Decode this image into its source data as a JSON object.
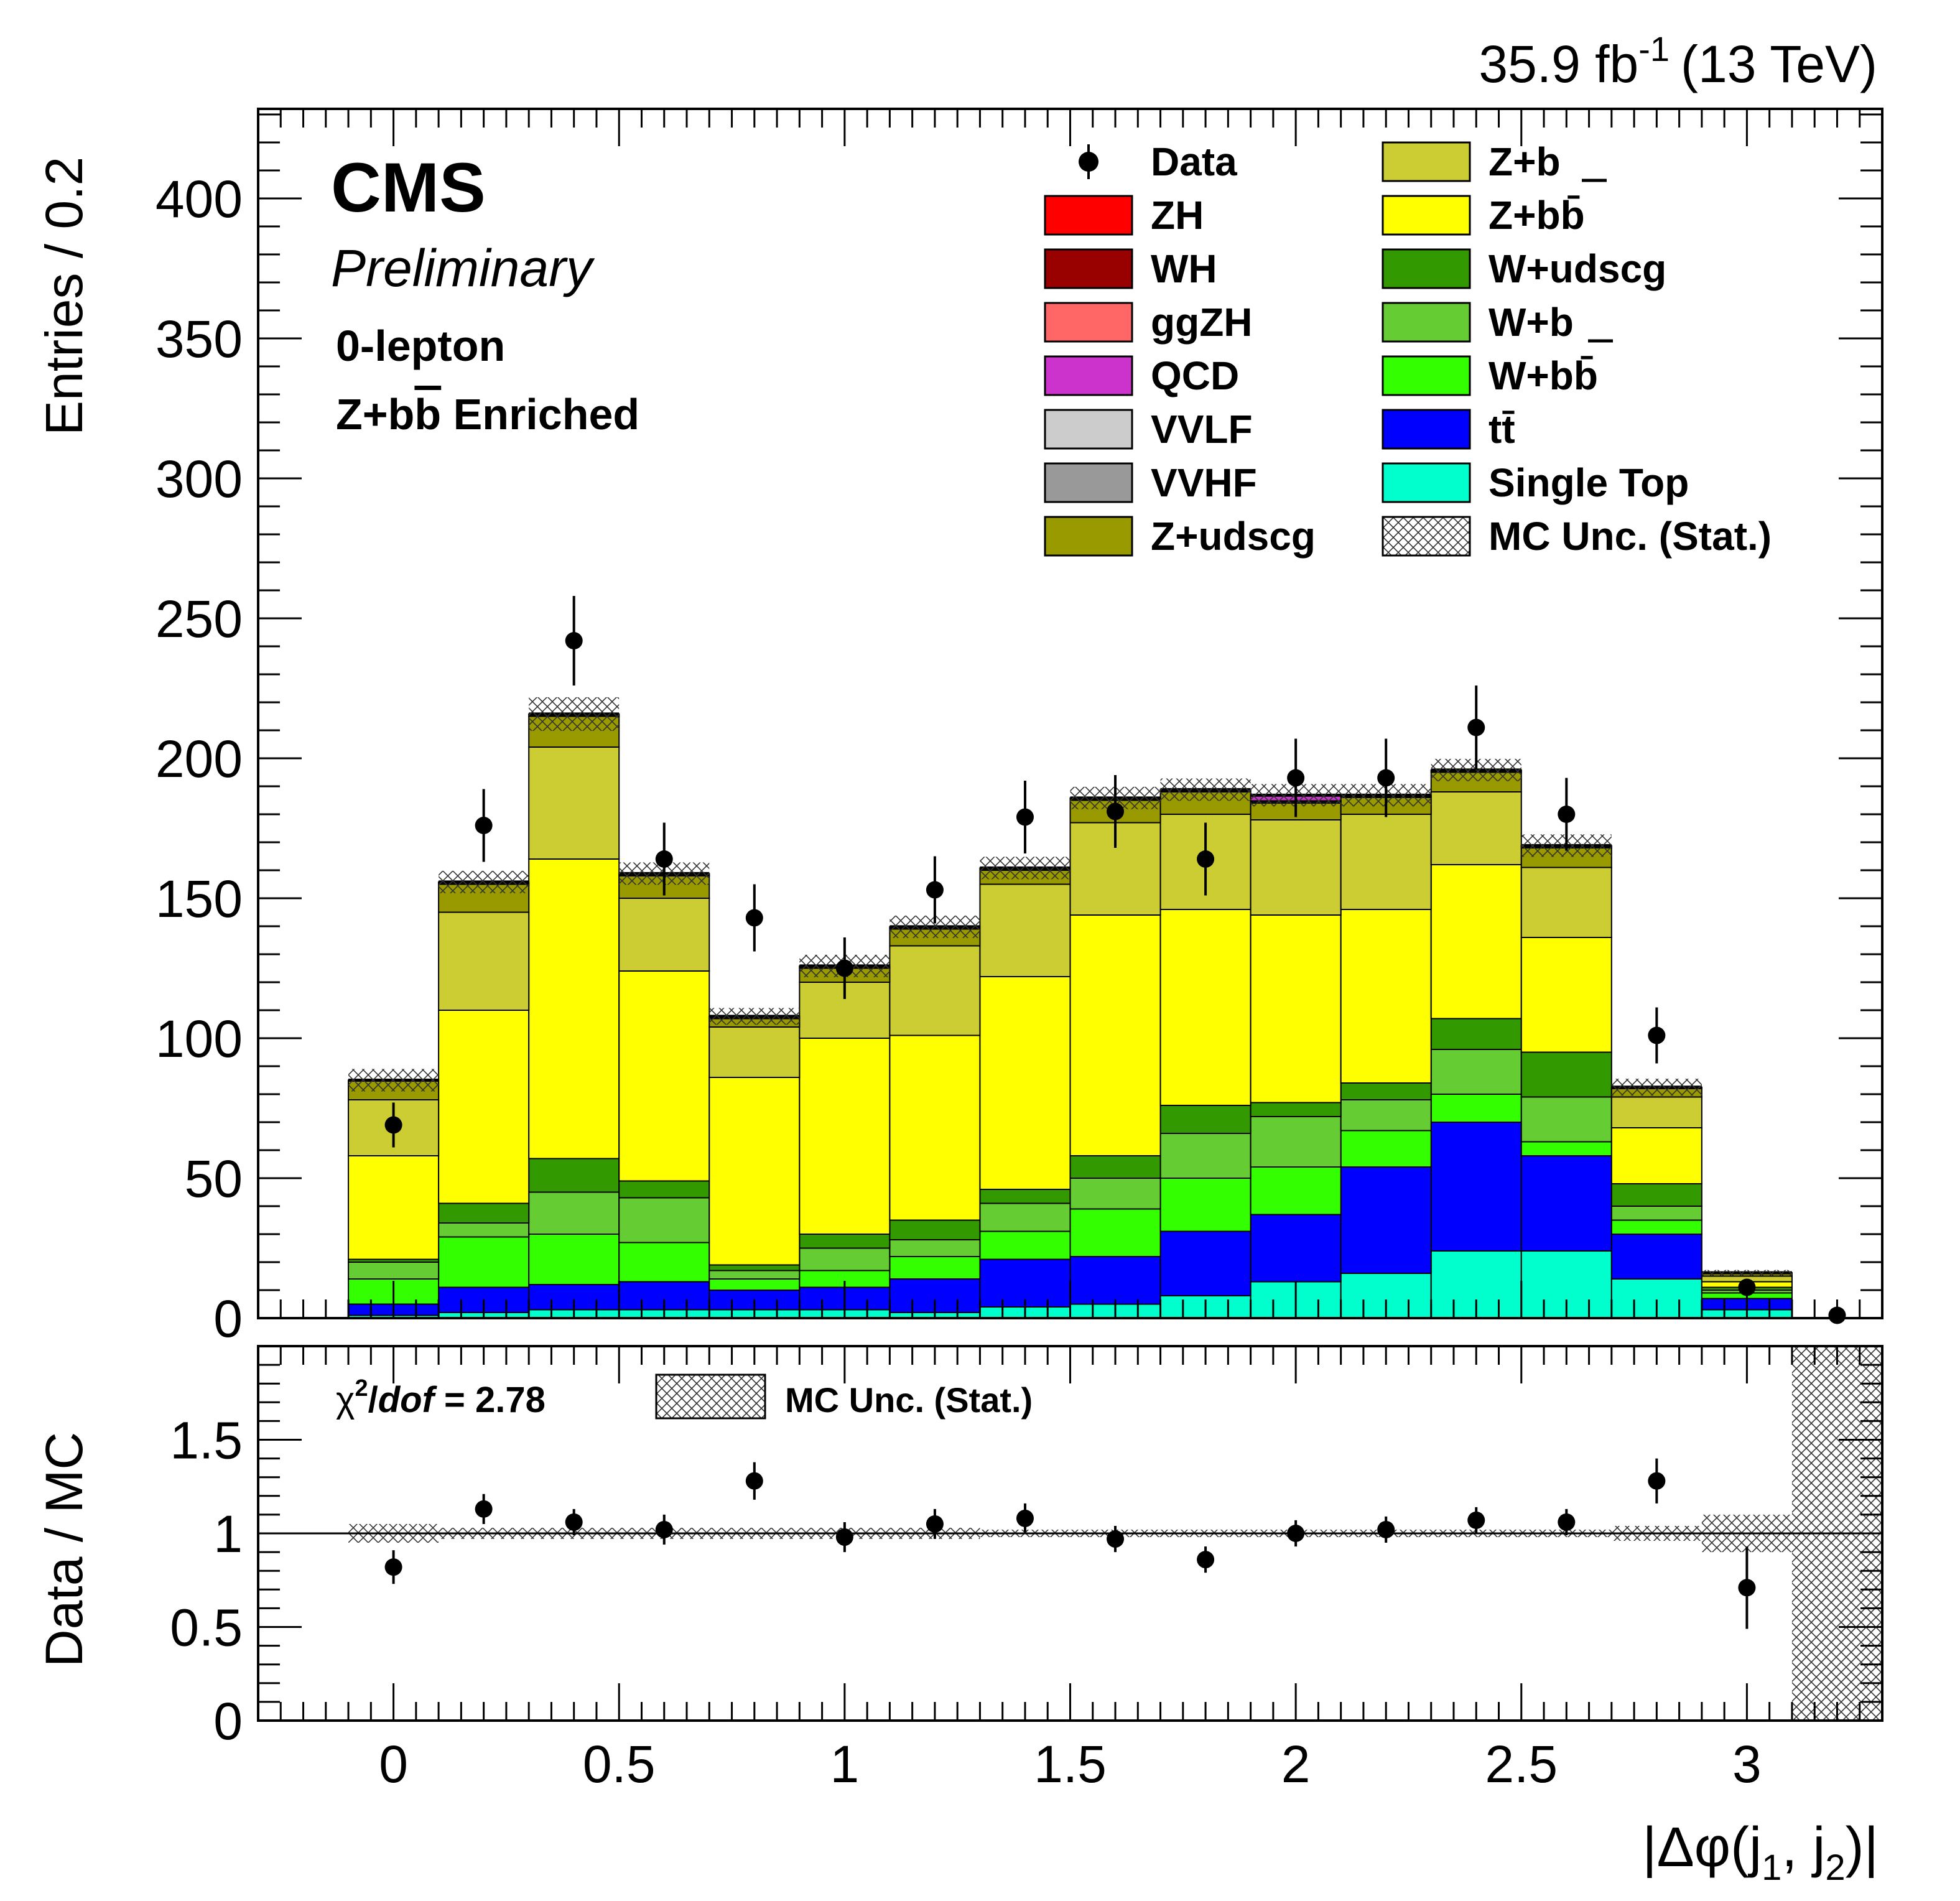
{
  "header": {
    "lumi_value": "35.9 fb",
    "lumi_exp": "-1",
    "lumi_energy": "(13 TeV)"
  },
  "labels": {
    "cms": "CMS",
    "preliminary": "Preliminary",
    "channel": "0-lepton",
    "region_prefix": "Z+b",
    "region_bbar": "b",
    "region_suffix": " Enriched",
    "chi2_chi": "χ",
    "chi2_sup": "2",
    "chi2_slash": "/",
    "chi2_dof": "dof",
    "chi2_value": " = 2.78",
    "ratio_legend": "MC Unc. (Stat.)"
  },
  "colors": {
    "Single Top": "#00ffcc",
    "ttbar": "#0000ff",
    "W+bbbar": "#33ff00",
    "W+b": "#66cc33",
    "W+udscg": "#339900",
    "Z+bbbar": "#ffff00",
    "Z+b": "#cccc33",
    "Z+udscg": "#999900",
    "VVHF": "#999999",
    "VVLF": "#cccccc",
    "QCD": "#cc33cc",
    "ggZH": "#ff6666",
    "WH": "#990000",
    "ZH": "#ff0000"
  },
  "chart_data": [
    {
      "type": "bar",
      "stacked": true,
      "panel": "main",
      "title": "",
      "xlabel": "|Δφ(j1, j2)|",
      "ylabel": "Entries / 0.2",
      "xlim": [
        -0.3,
        3.3
      ],
      "ylim": [
        0,
        432
      ],
      "bin_width": 0.2,
      "x": [
        0,
        0.2,
        0.4,
        0.6,
        0.8,
        1.0,
        1.2,
        1.4,
        1.6,
        1.8,
        2.0,
        2.2,
        2.4,
        2.6,
        2.8,
        3.0,
        3.2
      ],
      "xticks": [
        "0",
        "0.5",
        "1",
        "1.5",
        "2",
        "2.5",
        "3"
      ],
      "yticks": [
        "0",
        "50",
        "100",
        "150",
        "200",
        "250",
        "300",
        "350",
        "400"
      ],
      "series": [
        {
          "name": "Single Top",
          "values": [
            1,
            2,
            3,
            3,
            3,
            3,
            2,
            4,
            5,
            8,
            13,
            16,
            24,
            24,
            14,
            3,
            0
          ]
        },
        {
          "name": "tt̄",
          "values": [
            4,
            9,
            9,
            10,
            7,
            8,
            12,
            17,
            17,
            23,
            24,
            38,
            46,
            34,
            16,
            4,
            0
          ]
        },
        {
          "name": "W+bb̄",
          "values": [
            9,
            18,
            18,
            14,
            4,
            6,
            8,
            10,
            17,
            19,
            17,
            13,
            10,
            5,
            5,
            2,
            0
          ]
        },
        {
          "name": "W+b",
          "values": [
            6,
            5,
            15,
            16,
            3,
            8,
            6,
            10,
            11,
            16,
            18,
            11,
            16,
            16,
            5,
            1,
            0
          ]
        },
        {
          "name": "W+udscg",
          "values": [
            1,
            7,
            12,
            6,
            2,
            5,
            7,
            5,
            8,
            10,
            5,
            6,
            11,
            16,
            8,
            1,
            0
          ]
        },
        {
          "name": "Z+bb̄",
          "values": [
            37,
            69,
            107,
            75,
            67,
            70,
            66,
            76,
            86,
            70,
            67,
            62,
            55,
            41,
            20,
            2,
            0
          ]
        },
        {
          "name": "Z+b",
          "values": [
            20,
            35,
            40,
            26,
            18,
            20,
            32,
            33,
            33,
            34,
            34,
            34,
            26,
            25,
            11,
            2,
            0
          ]
        },
        {
          "name": "Z+udscg",
          "values": [
            7,
            10,
            11,
            8,
            3,
            5,
            6,
            5,
            8,
            8,
            6,
            6,
            7,
            7,
            3,
            1,
            0
          ]
        },
        {
          "name": "VVHF",
          "values": [
            0,
            0.5,
            0.5,
            0.5,
            0.5,
            0.5,
            0.5,
            0.5,
            0.5,
            0.5,
            0.5,
            0.5,
            0.5,
            0.5,
            0.3,
            0.1,
            0
          ]
        },
        {
          "name": "VVLF",
          "values": [
            0,
            0.3,
            0.3,
            0.3,
            0.3,
            0.3,
            0.3,
            0.3,
            0.3,
            0.3,
            0.3,
            0.3,
            0.3,
            0.3,
            0.2,
            0.1,
            0
          ]
        },
        {
          "name": "QCD",
          "values": [
            0,
            0,
            0,
            0,
            0,
            0,
            0,
            0,
            0,
            0,
            2,
            0,
            0,
            0,
            0,
            0,
            0
          ]
        },
        {
          "name": "ggZH",
          "values": [
            0,
            0,
            0,
            0,
            0,
            0,
            0,
            0,
            0,
            0,
            0,
            0,
            0,
            0,
            0,
            0,
            0
          ]
        },
        {
          "name": "WH",
          "values": [
            0,
            0,
            0,
            0,
            0,
            0,
            0,
            0,
            0,
            0,
            0,
            0,
            0,
            0,
            0,
            0,
            0
          ]
        },
        {
          "name": "ZH",
          "values": [
            0,
            0,
            0,
            0,
            0,
            0,
            0,
            0,
            0,
            0,
            0,
            0,
            0,
            0,
            0,
            0,
            0
          ]
        }
      ],
      "mc_unc": [
        4,
        4,
        6,
        4,
        3,
        4,
        4,
        4,
        4,
        4,
        4,
        4,
        4,
        4,
        3,
        1,
        0
      ],
      "data": {
        "name": "Data",
        "values": [
          69,
          176,
          242,
          164,
          143,
          125,
          153,
          179,
          181,
          164,
          193,
          193,
          211,
          180,
          101,
          11,
          1
        ],
        "errors": [
          8,
          13,
          16,
          13,
          12,
          11,
          12,
          13,
          13,
          13,
          14,
          14,
          15,
          13,
          10,
          3,
          1
        ]
      },
      "legend": {
        "placement": "top-right",
        "columns": [
          [
            "Data",
            "ZH",
            "WH",
            "ggZH",
            "QCD",
            "VVLF",
            "VVHF",
            "Z+udscg"
          ],
          [
            "Z+b",
            "Z+bb̄",
            "W+udscg",
            "W+b",
            "W+bb̄",
            "tt̄",
            "Single Top",
            "MC Unc. (Stat.)"
          ]
        ]
      }
    },
    {
      "type": "scatter",
      "panel": "ratio",
      "xlabel": "|Δφ(j1, j2)|",
      "ylabel": "Data / MC",
      "xlim": [
        -0.3,
        3.3
      ],
      "ylim": [
        0,
        2
      ],
      "yticks": [
        "0",
        "0.5",
        "1",
        "1.5"
      ],
      "x": [
        0,
        0.2,
        0.4,
        0.6,
        0.8,
        1.0,
        1.2,
        1.4,
        1.6,
        1.8,
        2.0,
        2.2,
        2.4,
        2.6,
        2.8,
        3.0
      ],
      "values": [
        0.82,
        1.13,
        1.06,
        1.02,
        1.28,
        0.98,
        1.05,
        1.08,
        0.97,
        0.86,
        1.0,
        1.02,
        1.07,
        1.06,
        1.28,
        0.71
      ],
      "errors": [
        0.09,
        0.08,
        0.07,
        0.08,
        0.1,
        0.08,
        0.08,
        0.08,
        0.07,
        0.07,
        0.07,
        0.07,
        0.07,
        0.07,
        0.12,
        0.22
      ],
      "unc_band": [
        0.05,
        0.03,
        0.03,
        0.03,
        0.03,
        0.03,
        0.03,
        0.02,
        0.02,
        0.02,
        0.02,
        0.02,
        0.02,
        0.02,
        0.04,
        0.1,
        1.0
      ]
    }
  ]
}
